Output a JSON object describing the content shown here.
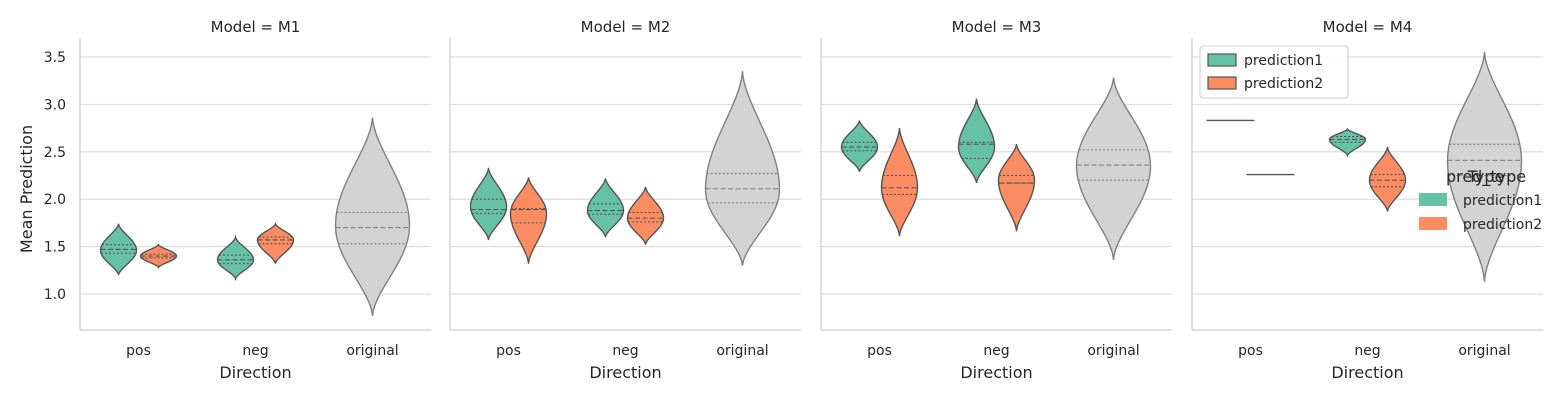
{
  "chart_data": {
    "type": "violin",
    "facet_title_prefix": "Model = ",
    "facets": [
      "M1",
      "M2",
      "M3",
      "M4"
    ],
    "categories": [
      "pos",
      "neg",
      "original"
    ],
    "xlabel": "Direction",
    "ylabel": "Mean Prediction",
    "ylim": [
      0.62,
      3.7
    ],
    "yticks": [
      1.0,
      1.5,
      2.0,
      2.5,
      3.0,
      3.5
    ],
    "ytick_labels": [
      "1.0",
      "1.5",
      "2.0",
      "2.5",
      "3.0",
      "3.5"
    ],
    "grid": "horizontal",
    "inner": "quartile",
    "colors": {
      "prediction1": "#66c2a5",
      "prediction2": "#fc8d62",
      "original": "#d3d3d3",
      "edge": "#555555",
      "original_edge": "#808080",
      "grid": "#d9d9d9",
      "spine": "#cccccc"
    },
    "legend_inside": {
      "facet": "M4",
      "placement": "top-left",
      "items": [
        {
          "label": "prediction1",
          "color": "#66c2a5"
        },
        {
          "label": "prediction2",
          "color": "#fc8d62"
        }
      ]
    },
    "legend_outside": {
      "titles": [
        "pred_type",
        "Type"
      ],
      "placement": "right",
      "items": [
        {
          "label": "prediction1",
          "color": "#66c2a5"
        },
        {
          "label": "prediction2",
          "color": "#fc8d62"
        }
      ]
    },
    "violins": [
      {
        "facet": "M1",
        "category": "pos",
        "series": "prediction1",
        "min": 1.2,
        "max": 1.74,
        "mode": 1.46,
        "q1": 1.43,
        "median": 1.47,
        "q3": 1.52
      },
      {
        "facet": "M1",
        "category": "pos",
        "series": "prediction2",
        "min": 1.28,
        "max": 1.52,
        "mode": 1.4,
        "q1": 1.38,
        "median": 1.4,
        "q3": 1.42
      },
      {
        "facet": "M1",
        "category": "neg",
        "series": "prediction1",
        "min": 1.16,
        "max": 1.6,
        "mode": 1.36,
        "q1": 1.32,
        "median": 1.36,
        "q3": 1.41
      },
      {
        "facet": "M1",
        "category": "neg",
        "series": "prediction2",
        "min": 1.32,
        "max": 1.74,
        "mode": 1.57,
        "q1": 1.53,
        "median": 1.57,
        "q3": 1.6
      },
      {
        "facet": "M1",
        "category": "original",
        "series": "original",
        "min": 0.77,
        "max": 2.86,
        "mode": 1.72,
        "q1": 1.53,
        "median": 1.7,
        "q3": 1.86
      },
      {
        "facet": "M2",
        "category": "pos",
        "series": "prediction1",
        "min": 1.57,
        "max": 2.33,
        "mode": 1.92,
        "q1": 1.85,
        "median": 1.89,
        "q3": 2.0
      },
      {
        "facet": "M2",
        "category": "pos",
        "series": "prediction2",
        "min": 1.32,
        "max": 2.23,
        "mode": 1.85,
        "q1": 1.75,
        "median": 1.89,
        "q3": 1.9
      },
      {
        "facet": "M2",
        "category": "neg",
        "series": "prediction1",
        "min": 1.6,
        "max": 2.22,
        "mode": 1.88,
        "q1": 1.84,
        "median": 1.88,
        "q3": 1.95
      },
      {
        "facet": "M2",
        "category": "neg",
        "series": "prediction2",
        "min": 1.52,
        "max": 2.13,
        "mode": 1.8,
        "q1": 1.76,
        "median": 1.8,
        "q3": 1.86
      },
      {
        "facet": "M2",
        "category": "original",
        "series": "original",
        "min": 1.3,
        "max": 3.35,
        "mode": 2.1,
        "q1": 1.96,
        "median": 2.11,
        "q3": 2.27
      },
      {
        "facet": "M3",
        "category": "pos",
        "series": "prediction1",
        "min": 2.29,
        "max": 2.83,
        "mode": 2.55,
        "q1": 2.51,
        "median": 2.55,
        "q3": 2.6
      },
      {
        "facet": "M3",
        "category": "pos",
        "series": "prediction2",
        "min": 1.61,
        "max": 2.75,
        "mode": 2.12,
        "q1": 2.05,
        "median": 2.12,
        "q3": 2.25
      },
      {
        "facet": "M3",
        "category": "neg",
        "series": "prediction1",
        "min": 2.17,
        "max": 3.06,
        "mode": 2.55,
        "q1": 2.43,
        "median": 2.58,
        "q3": 2.6
      },
      {
        "facet": "M3",
        "category": "neg",
        "series": "prediction2",
        "min": 1.66,
        "max": 2.58,
        "mode": 2.2,
        "q1": 2.17,
        "median": 2.17,
        "q3": 2.25
      },
      {
        "facet": "M3",
        "category": "original",
        "series": "original",
        "min": 1.36,
        "max": 3.28,
        "mode": 2.35,
        "q1": 2.2,
        "median": 2.36,
        "q3": 2.52
      },
      {
        "facet": "M4",
        "category": "pos",
        "series": "prediction1",
        "min": 2.83,
        "max": 2.83,
        "mode": 2.83,
        "q1": 2.83,
        "median": 2.83,
        "q3": 2.83
      },
      {
        "facet": "M4",
        "category": "pos",
        "series": "prediction2",
        "min": 2.26,
        "max": 2.26,
        "mode": 2.26,
        "q1": 2.26,
        "median": 2.26,
        "q3": 2.26
      },
      {
        "facet": "M4",
        "category": "neg",
        "series": "prediction1",
        "min": 2.46,
        "max": 2.74,
        "mode": 2.63,
        "q1": 2.6,
        "median": 2.63,
        "q3": 2.66
      },
      {
        "facet": "M4",
        "category": "neg",
        "series": "prediction2",
        "min": 1.87,
        "max": 2.55,
        "mode": 2.2,
        "q1": 2.13,
        "median": 2.2,
        "q3": 2.26
      },
      {
        "facet": "M4",
        "category": "original",
        "series": "original",
        "min": 1.13,
        "max": 3.55,
        "mode": 2.4,
        "q1": 2.25,
        "median": 2.41,
        "q3": 2.58
      }
    ]
  }
}
